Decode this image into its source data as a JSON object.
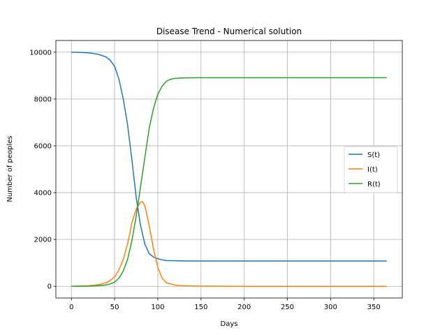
{
  "chart_data": {
    "type": "line",
    "title": "Disease Trend - Numerical solution",
    "xlabel": "Days",
    "ylabel": "Number of peoples",
    "xlim": [
      -18,
      383
    ],
    "ylim": [
      -500,
      10500
    ],
    "xticks": [
      0,
      50,
      100,
      150,
      200,
      250,
      300,
      350
    ],
    "yticks": [
      0,
      2000,
      4000,
      6000,
      8000,
      10000
    ],
    "grid": true,
    "legend": "center-right",
    "series": [
      {
        "name": "S(t)",
        "color": "#1f77b4",
        "x": [
          0,
          10,
          20,
          30,
          40,
          45,
          50,
          55,
          60,
          65,
          70,
          75,
          80,
          85,
          90,
          95,
          100,
          105,
          110,
          120,
          130,
          150,
          200,
          250,
          300,
          365
        ],
        "y": [
          10000,
          9990,
          9970,
          9920,
          9800,
          9650,
          9400,
          8850,
          8000,
          6900,
          5400,
          3800,
          2600,
          1800,
          1400,
          1250,
          1180,
          1130,
          1100,
          1090,
          1085,
          1080,
          1080,
          1080,
          1080,
          1080
        ]
      },
      {
        "name": "I(t)",
        "color": "#ff7f0e",
        "x": [
          0,
          10,
          20,
          30,
          40,
          45,
          50,
          55,
          60,
          65,
          70,
          75,
          80,
          82,
          85,
          90,
          95,
          100,
          105,
          110,
          120,
          130,
          150,
          200,
          250,
          300,
          365
        ],
        "y": [
          0,
          10,
          25,
          60,
          150,
          250,
          400,
          700,
          1150,
          1800,
          2700,
          3300,
          3600,
          3620,
          3450,
          2600,
          1600,
          800,
          350,
          150,
          50,
          20,
          5,
          0,
          0,
          0,
          0
        ]
      },
      {
        "name": "R(t)",
        "color": "#2ca02c",
        "x": [
          0,
          10,
          20,
          30,
          40,
          45,
          50,
          55,
          60,
          65,
          70,
          75,
          80,
          85,
          90,
          95,
          100,
          105,
          110,
          115,
          120,
          130,
          150,
          200,
          250,
          300,
          365
        ],
        "y": [
          0,
          2,
          8,
          25,
          60,
          100,
          180,
          350,
          650,
          1150,
          1950,
          3000,
          4250,
          5500,
          6750,
          7600,
          8200,
          8550,
          8760,
          8850,
          8880,
          8900,
          8910,
          8910,
          8910,
          8910,
          8910
        ]
      }
    ]
  }
}
